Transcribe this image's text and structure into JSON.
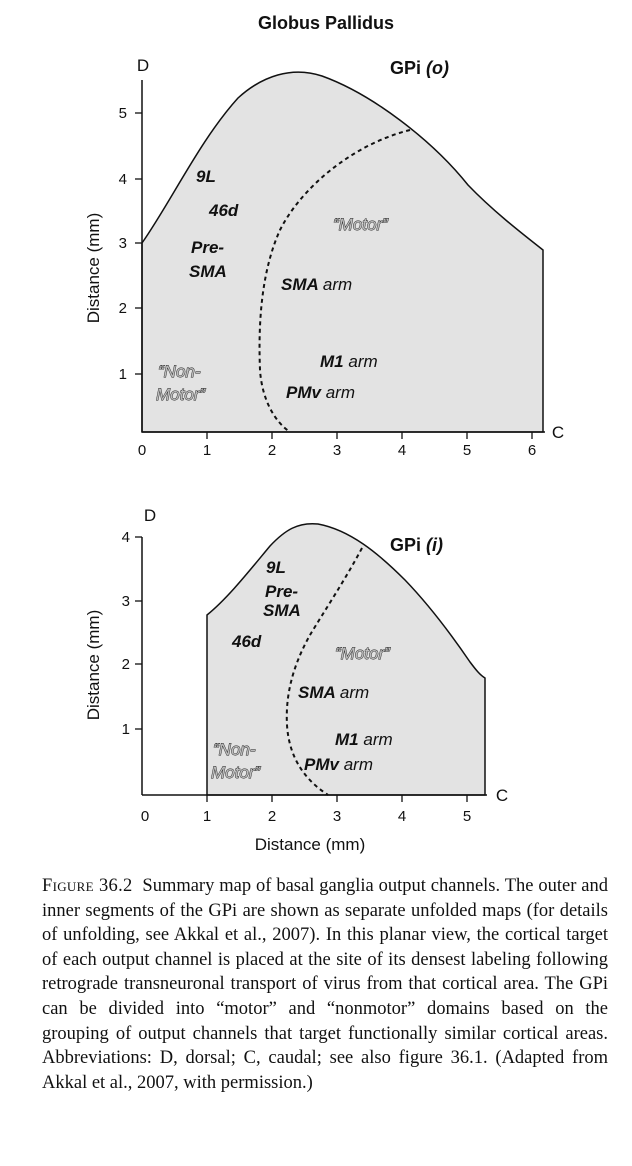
{
  "title": "Globus Pallidus",
  "panels": [
    {
      "segment": "GPi",
      "segment_qualifier": "(o)",
      "axis_y_end": "D",
      "axis_x_end": "C",
      "y_axis_label": "Distance (mm)",
      "x_ticks": [
        "0",
        "1",
        "2",
        "3",
        "4",
        "5",
        "6"
      ],
      "y_ticks": [
        "1",
        "2",
        "3",
        "4",
        "5"
      ],
      "labels": {
        "9L": "9L",
        "46d": "46d",
        "pre": "Pre-",
        "sma": "SMA",
        "sma_arm_a": "SMA",
        "sma_arm_b": "arm",
        "m1_arm_a": "M1",
        "m1_arm_b": "arm",
        "pmv_arm_a": "PMv",
        "pmv_arm_b": "arm",
        "motor": "“Motor”",
        "non": "“Non-",
        "motor2": "Motor”"
      }
    },
    {
      "segment": "GPi",
      "segment_qualifier": "(i)",
      "axis_y_end": "D",
      "axis_x_end": "C",
      "y_axis_label": "Distance (mm)",
      "x_axis_label": "Distance (mm)",
      "x_ticks": [
        "0",
        "1",
        "2",
        "3",
        "4",
        "5"
      ],
      "y_ticks": [
        "1",
        "2",
        "3",
        "4"
      ],
      "labels": {
        "9L": "9L",
        "pre": "Pre-",
        "sma": "SMA",
        "46d": "46d",
        "motor": "“Motor”",
        "sma_arm_a": "SMA",
        "sma_arm_b": "arm",
        "m1_arm_a": "M1",
        "m1_arm_b": "arm",
        "pmv_arm_a": "PMv",
        "pmv_arm_b": "arm",
        "non": "“Non-",
        "motor2": "Motor”"
      }
    }
  ],
  "caption": {
    "figure_label": "Figure 36.2",
    "text": "Summary map of basal ganglia output channels. The outer and inner segments of the GPi are shown as separate unfolded maps (for details of unfolding, see Akkal et al., 2007). In this planar view, the cortical target of each output channel is placed at the site of its densest labeling following retrograde transneuronal transport of virus from that cortical area. The GPi can be divided into “motor” and “nonmotor” domains based on the grouping of output channels that target functionally similar cortical areas. Abbreviations: D, dorsal; C, caudal; see also figure 36.1. (Adapted from Akkal et al., 2007, with permission.)"
  }
}
